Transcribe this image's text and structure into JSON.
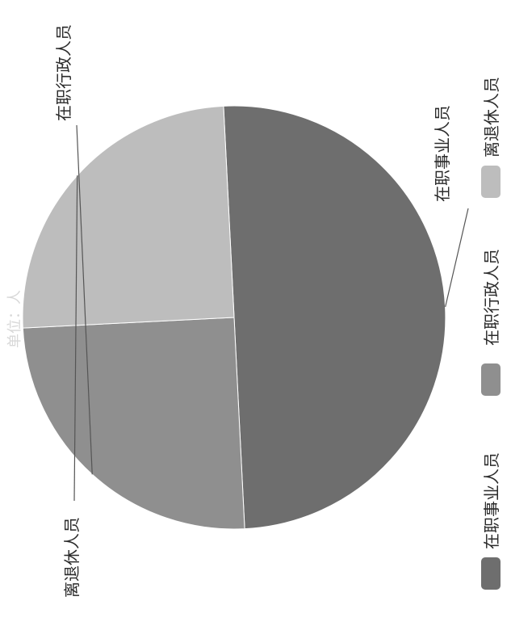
{
  "chart_data": {
    "type": "pie",
    "title": "",
    "unit_label": "单位：人",
    "slices": [
      {
        "label": "在职事业人员",
        "value": 50,
        "color": "#6e6e6e"
      },
      {
        "label": "在职行政人员",
        "value": 25,
        "color": "#8f8f8f"
      },
      {
        "label": "离退休人员",
        "value": 25,
        "color": "#bdbdbd"
      }
    ],
    "legend": {
      "position": "bottom",
      "items": [
        "在职事业人员",
        "在职行政人员",
        "离退休人员"
      ]
    }
  }
}
